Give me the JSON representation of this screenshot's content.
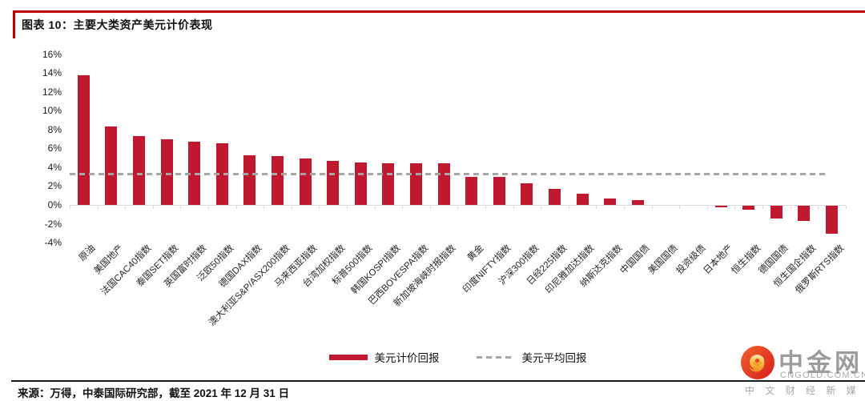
{
  "figure": {
    "title": "图表 10：主要大类资产美元计价表现",
    "source_note": "来源：万得，中泰国际研究部，截至 2021 年 12 月 31 日"
  },
  "chart_data": {
    "type": "bar",
    "title": "主要大类资产美元计价表现",
    "categories": [
      "原油",
      "美国地产",
      "法国CAC40指数",
      "泰国SET指数",
      "英国富时指数",
      "泛欧50指数",
      "德国DAX指数",
      "澳大利亚S&P/ASX200指数",
      "马来西亚指数",
      "台湾加权指数",
      "标普500指数",
      "韩国KOSPI指数",
      "巴西BOVESPA指数",
      "新加坡海峡时报指数",
      "黄金",
      "印度NIFTY指数",
      "沪深300指数",
      "日经225指数",
      "印尼雅加达指数",
      "纳斯达克指数",
      "中国国债",
      "美国国债",
      "投资级债",
      "日本地产",
      "恒生指数",
      "德国国债",
      "恒生国企指数",
      "俄罗斯RTS指数"
    ],
    "series": [
      {
        "name": "美元计价回报",
        "values": [
          13.8,
          8.3,
          7.3,
          7.0,
          6.7,
          6.5,
          5.3,
          5.2,
          4.9,
          4.7,
          4.5,
          4.4,
          4.4,
          4.4,
          3.0,
          3.0,
          2.3,
          1.7,
          1.2,
          0.7,
          0.5,
          0.0,
          0.0,
          -0.2,
          -0.4,
          -1.4,
          -1.6,
          -3.0
        ]
      }
    ],
    "average_line": {
      "label": "美元平均回报",
      "value": 3.35
    },
    "y_ticks": [
      "16%",
      "14%",
      "12%",
      "10%",
      "8%",
      "6%",
      "4%",
      "2%",
      "0%",
      "-2%",
      "-4%"
    ],
    "ylim": [
      -4,
      16
    ],
    "xlabel": "",
    "ylabel": "",
    "grid": false,
    "legend_position": "bottom",
    "bar_color": "#C0182F",
    "avg_line_color": "#A6A6A6"
  },
  "legend": {
    "bar_label": "美元计价回报",
    "line_label": "美元平均回报"
  },
  "watermark": {
    "site_name": "中金网",
    "domain": "CNGOLD.COM.CN",
    "tagline": "中 文 财 经 新 媒 体"
  }
}
